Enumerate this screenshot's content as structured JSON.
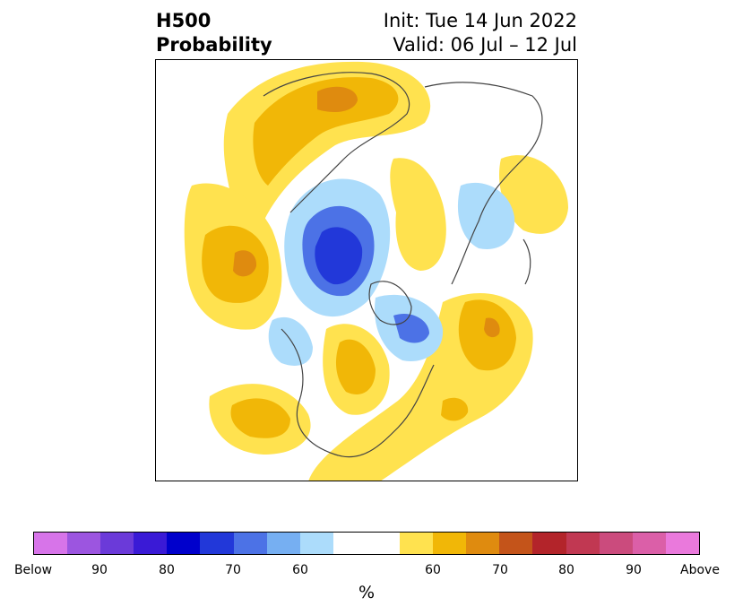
{
  "header": {
    "title_line1": "H500",
    "title_line2": "Probability",
    "init": "Init: Tue 14 Jun 2022",
    "valid": "Valid: 06 Jul – 12 Jul"
  },
  "colors": {
    "below": [
      "#d774e9",
      "#9c55e0",
      "#6b3ad9",
      "#3a1ad6",
      "#0000cc",
      "#2238d9",
      "#4c72e6",
      "#76aff2",
      "#acdcfb"
    ],
    "neutral": "#ffffff",
    "above": [
      "#ffe24f",
      "#f1b707",
      "#df8b0f",
      "#c4541a",
      "#b3242a",
      "#c13852",
      "#cb4b7d",
      "#db5fa8",
      "#ea79dc"
    ],
    "coastline": "#444444"
  },
  "colorbar": {
    "ticks": [
      "Below",
      "90",
      "80",
      "70",
      "60",
      "60",
      "70",
      "80",
      "90",
      "Above"
    ],
    "unit": "%"
  },
  "map": {
    "projection": "north-polar-stereographic",
    "field": "500 hPa height tercile probability"
  }
}
